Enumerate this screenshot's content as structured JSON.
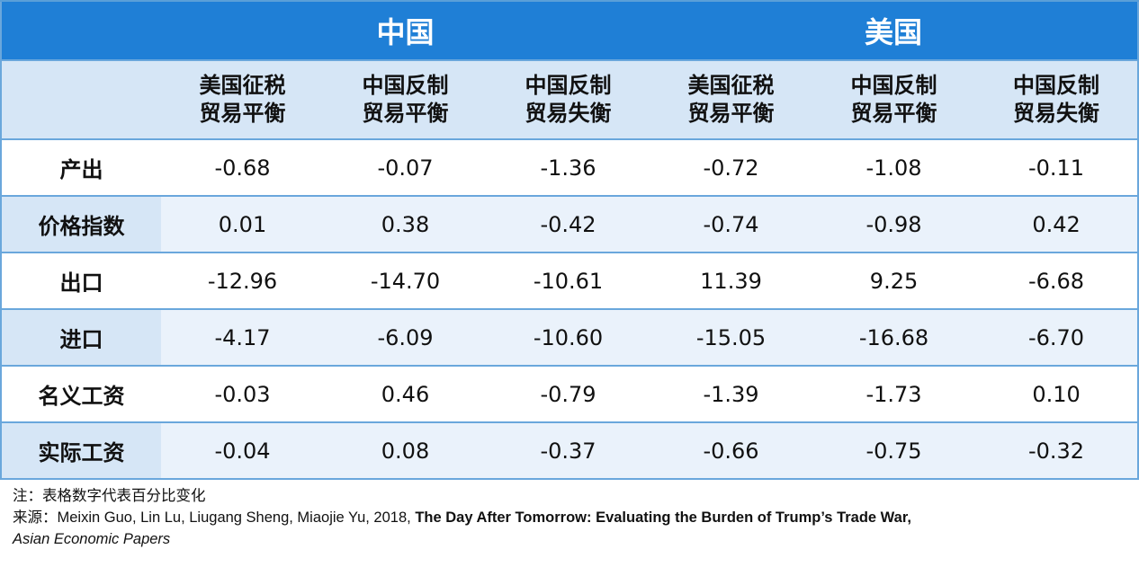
{
  "header": {
    "group_labels": [
      "中国",
      "美国"
    ]
  },
  "subheaders": [
    [
      "美国征税",
      "贸易平衡"
    ],
    [
      "中国反制",
      "贸易平衡"
    ],
    [
      "中国反制",
      "贸易失衡"
    ],
    [
      "美国征税",
      "贸易平衡"
    ],
    [
      "中国反制",
      "贸易平衡"
    ],
    [
      "中国反制",
      "贸易失衡"
    ]
  ],
  "rows": [
    {
      "label": "产出",
      "values": [
        "-0.68",
        "-0.07",
        "-1.36",
        "-0.72",
        "-1.08",
        "-0.11"
      ]
    },
    {
      "label": "价格指数",
      "values": [
        "0.01",
        "0.38",
        "-0.42",
        "-0.74",
        "-0.98",
        "0.42"
      ]
    },
    {
      "label": "出口",
      "values": [
        "-12.96",
        "-14.70",
        "-10.61",
        "11.39",
        "9.25",
        "-6.68"
      ]
    },
    {
      "label": "进口",
      "values": [
        "-4.17",
        "-6.09",
        "-10.60",
        "-15.05",
        "-16.68",
        "-6.70"
      ]
    },
    {
      "label": "名义工资",
      "values": [
        "-0.03",
        "0.46",
        "-0.79",
        "-1.39",
        "-1.73",
        "0.10"
      ]
    },
    {
      "label": "实际工资",
      "values": [
        "-0.04",
        "0.08",
        "-0.37",
        "-0.66",
        "-0.75",
        "-0.32"
      ]
    }
  ],
  "notes": {
    "note": "注：表格数字代表百分比变化",
    "source_prefix": "来源：Meixin Guo, Lin Lu, Liugang Sheng, Miaojie Yu, 2018, ",
    "source_title": "The Day After Tomorrow: Evaluating the Burden of Trump’s Trade War,",
    "source_journal": "Asian Economic Papers"
  },
  "colors": {
    "header_bg": "#1f7fd6",
    "subheader_bg": "#d6e6f6",
    "stripe_bg": "#eaf2fb",
    "border": "#6aa7dc"
  }
}
